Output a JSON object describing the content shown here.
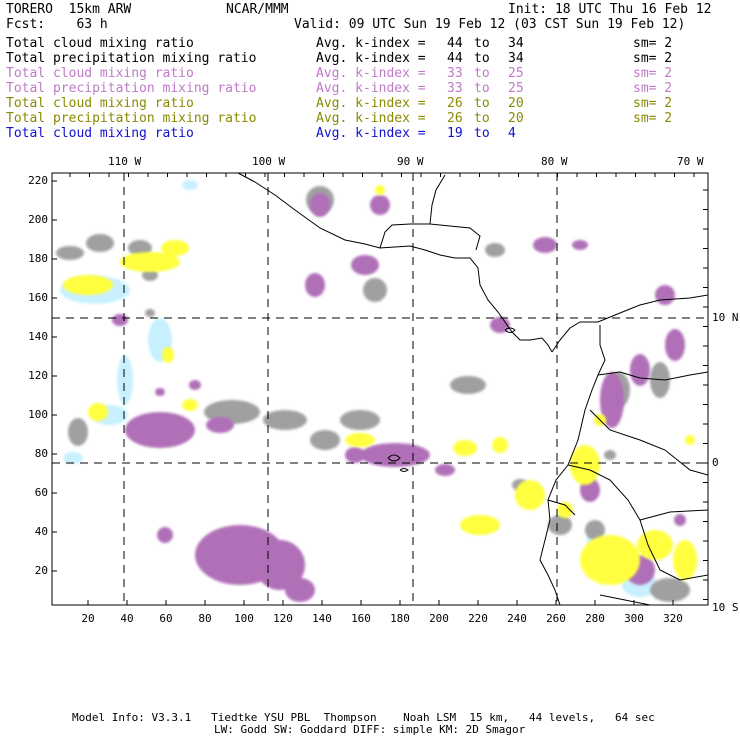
{
  "header": {
    "model": "TORERO  15km ARW",
    "org": "NCAR/MMM",
    "init": "Init: 18 UTC Thu 16 Feb 12",
    "fcst": "Fcst:    63 h",
    "valid": "Valid: 09 UTC Sun 19 Feb 12 (03 CST Sun 19 Feb 12)"
  },
  "legend": [
    {
      "field": "Total cloud mixing ratio",
      "index": "Avg. k-index =",
      "from": "44",
      "to_word": "to",
      "to": "34",
      "sm": "sm= 2",
      "color": "#000000"
    },
    {
      "field": "Total precipitation mixing ratio",
      "index": "Avg. k-index =",
      "from": "44",
      "to_word": "to",
      "to": "34",
      "sm": "sm= 2",
      "color": "#000000"
    },
    {
      "field": "Total cloud mixing ratio",
      "index": "Avg. k-index =",
      "from": "33",
      "to_word": "to",
      "to": "25",
      "sm": "sm= 2",
      "color": "#c07ac8"
    },
    {
      "field": "Total precipitation mixing ratio",
      "index": "Avg. k-index =",
      "from": "33",
      "to_word": "to",
      "to": "25",
      "sm": "sm= 2",
      "color": "#c07ac8"
    },
    {
      "field": "Total cloud mixing ratio",
      "index": "Avg. k-index =",
      "from": "26",
      "to_word": "to",
      "to": "20",
      "sm": "sm= 2",
      "color": "#8a8a00"
    },
    {
      "field": "Total precipitation mixing ratio",
      "index": "Avg. k-index =",
      "from": "26",
      "to_word": "to",
      "to": "20",
      "sm": "sm= 2",
      "color": "#8a8a00"
    },
    {
      "field": "Total cloud mixing ratio",
      "index": "Avg. k-index =",
      "from": "19",
      "to_word": "to",
      "to": "4",
      "sm": "",
      "color": "#1010d0"
    }
  ],
  "axes": {
    "top_lon_labels": [
      "110 W",
      "100 W",
      "90 W",
      "80 W",
      "70 W"
    ],
    "right_lat_labels": [
      "10 N",
      "0",
      "10 S"
    ],
    "left_ticks": [
      "220",
      "200",
      "180",
      "160",
      "140",
      "120",
      "100",
      "80",
      "60",
      "40",
      "20"
    ],
    "bottom_ticks": [
      "20",
      "40",
      "60",
      "80",
      "100",
      "120",
      "140",
      "160",
      "180",
      "200",
      "220",
      "240",
      "260",
      "280",
      "300",
      "320"
    ]
  },
  "footer": {
    "line1": "Model Info: V3.3.1   Tiedtke YSU PBL  Thompson    Noah LSM  15 km,   44 levels,   64 sec",
    "line2": "LW: Godd SW: Goddard DIFF: simple KM: 2D Smagor"
  },
  "colors": {
    "gray_cloud": "#a0a0a0",
    "purple_cloud": "#b070b8",
    "yellow_cloud": "#ffff40",
    "lightblue_cloud": "#c8f0ff",
    "coast": "#000000",
    "grid": "#000000"
  }
}
